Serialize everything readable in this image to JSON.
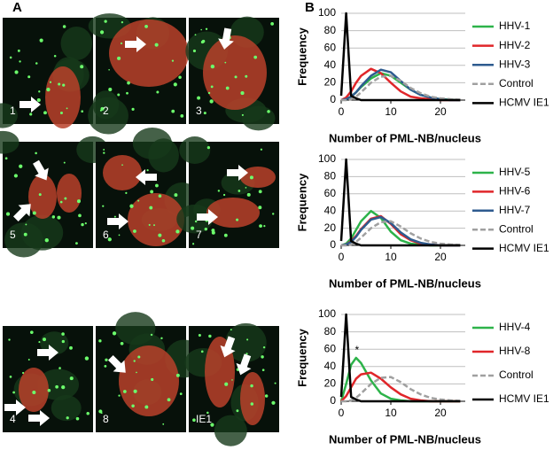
{
  "figure": {
    "panel_labels": [
      "A",
      "B"
    ],
    "images": [
      {
        "label": "1"
      },
      {
        "label": "2"
      },
      {
        "label": "3"
      },
      {
        "label": "5"
      },
      {
        "label": "6"
      },
      {
        "label": "7"
      },
      {
        "label": "4"
      },
      {
        "label": "8"
      },
      {
        "label": "IE1"
      }
    ]
  },
  "chart_data": [
    {
      "type": "line",
      "x_label": "Number of PML-NB/nucleus",
      "y_label": "Frequency",
      "x": [
        0,
        1,
        2,
        3,
        4,
        6,
        8,
        10,
        12,
        14,
        16,
        18,
        20,
        22,
        24
      ],
      "xlim": [
        0,
        25
      ],
      "xticks": [
        0,
        10,
        20
      ],
      "ylim": [
        0,
        100
      ],
      "yticks": [
        0,
        20,
        40,
        60,
        80,
        100
      ],
      "grid": true,
      "series": [
        {
          "name": "HHV-1",
          "color": "#2db34a",
          "values": [
            0,
            1,
            4,
            9,
            15,
            25,
            31,
            28,
            20,
            12,
            6,
            3,
            1,
            0.5,
            0
          ]
        },
        {
          "name": "HHV-2",
          "color": "#e0262a",
          "values": [
            0,
            3,
            10,
            20,
            28,
            36,
            31,
            20,
            10,
            4,
            2,
            1,
            0,
            0,
            0
          ]
        },
        {
          "name": "HHV-3",
          "color": "#2e5b8f",
          "values": [
            0,
            1,
            4,
            9,
            16,
            28,
            35,
            32,
            22,
            12,
            6,
            3,
            1,
            0,
            0
          ]
        },
        {
          "name": "Control",
          "color": "#a0a0a0",
          "dashed": true,
          "values": [
            0,
            0,
            1,
            4,
            9,
            20,
            27,
            28,
            22,
            14,
            8,
            4,
            2,
            1,
            0.5
          ]
        },
        {
          "name": "HCMV IE1",
          "color": "#000000",
          "values": [
            5,
            100,
            5,
            2,
            0,
            0,
            0,
            0,
            0,
            0,
            0,
            0,
            0,
            0,
            0
          ]
        }
      ]
    },
    {
      "type": "line",
      "x_label": "Number of PML-NB/nucleus",
      "y_label": "Frequency",
      "x": [
        0,
        1,
        2,
        3,
        4,
        6,
        8,
        10,
        12,
        14,
        16,
        18,
        20,
        22,
        24
      ],
      "xlim": [
        0,
        25
      ],
      "xticks": [
        0,
        10,
        20
      ],
      "ylim": [
        0,
        100
      ],
      "yticks": [
        0,
        20,
        40,
        60,
        80,
        100
      ],
      "grid": true,
      "series": [
        {
          "name": "HHV-5",
          "color": "#2db34a",
          "values": [
            0,
            2,
            8,
            18,
            28,
            40,
            32,
            16,
            6,
            2,
            1,
            0,
            0,
            0,
            0
          ]
        },
        {
          "name": "HHV-6",
          "color": "#e0262a",
          "values": [
            0,
            1,
            5,
            11,
            19,
            31,
            34,
            25,
            13,
            6,
            2,
            1,
            0,
            0,
            0
          ]
        },
        {
          "name": "HHV-7",
          "color": "#2e5b8f",
          "values": [
            0,
            1,
            4,
            10,
            18,
            30,
            33,
            26,
            15,
            7,
            3,
            1,
            0,
            0,
            0
          ]
        },
        {
          "name": "Control",
          "color": "#a0a0a0",
          "dashed": true,
          "values": [
            0,
            0,
            1,
            4,
            9,
            20,
            27,
            28,
            22,
            14,
            8,
            4,
            2,
            1,
            0.5
          ]
        },
        {
          "name": "HCMV IE1",
          "color": "#000000",
          "values": [
            5,
            100,
            5,
            2,
            0,
            0,
            0,
            0,
            0,
            0,
            0,
            0,
            0,
            0,
            0
          ]
        }
      ]
    },
    {
      "type": "line",
      "x_label": "Number of PML-NB/nucleus",
      "y_label": "Frequency",
      "annotation": "*",
      "x": [
        0,
        1,
        2,
        3,
        4,
        6,
        8,
        10,
        12,
        14,
        16,
        18,
        20,
        22,
        24
      ],
      "xlim": [
        0,
        25
      ],
      "xticks": [
        0,
        10,
        20
      ],
      "ylim": [
        0,
        100
      ],
      "yticks": [
        0,
        20,
        40,
        60,
        80,
        100
      ],
      "grid": true,
      "series": [
        {
          "name": "HHV-4",
          "color": "#2db34a",
          "values": [
            0,
            20,
            42,
            50,
            44,
            24,
            9,
            3,
            1,
            0,
            0,
            0,
            0,
            0,
            0
          ]
        },
        {
          "name": "HHV-8",
          "color": "#e0262a",
          "values": [
            0,
            6,
            16,
            26,
            31,
            33,
            26,
            16,
            8,
            3,
            1,
            0,
            0,
            0,
            0
          ]
        },
        {
          "name": "Control",
          "color": "#a0a0a0",
          "dashed": true,
          "values": [
            0,
            0,
            1,
            4,
            9,
            20,
            27,
            28,
            22,
            14,
            8,
            4,
            2,
            1,
            0.5
          ]
        },
        {
          "name": "HCMV IE1",
          "color": "#000000",
          "values": [
            5,
            100,
            5,
            2,
            0,
            0,
            0,
            0,
            0,
            0,
            0,
            0,
            0,
            0,
            0
          ]
        }
      ]
    }
  ]
}
